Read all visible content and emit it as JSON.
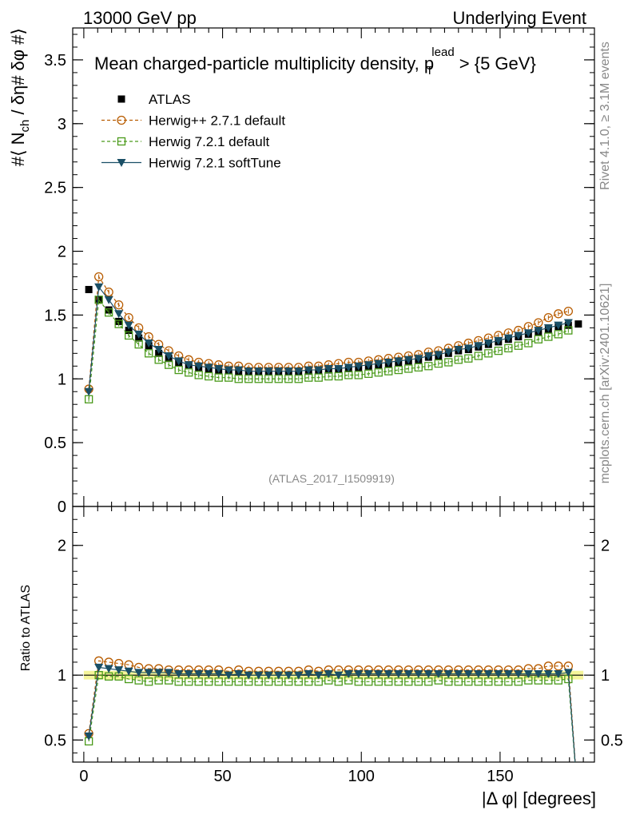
{
  "header": {
    "energy": "13000 GeV pp",
    "process": "Underlying Event"
  },
  "side_labels": {
    "rivet": "Rivet 4.1.0, ≥ 3.1M events",
    "mcplots": "mcplots.cern.ch [arXiv:2401.10621]"
  },
  "watermark": "(ATLAS_2017_I1509919)",
  "chart_data": [
    {
      "type": "line",
      "title": "Mean charged-particle multiplicity density, p_T^lead > {5 GeV}",
      "title_parts": {
        "main": "Mean charged-particle multiplicity density, p",
        "sub": "T",
        "sup": "lead",
        "tail": " > {5 GeV}"
      },
      "ylabel": "#⟨ N_ch / δη# δφ #⟩",
      "ylabel_parts": {
        "a": "#⟨ N",
        "sub": "ch",
        "b": " / δη# δφ #⟩"
      },
      "xlabel": "",
      "xlim": [
        -4,
        184
      ],
      "ylim": [
        0,
        3.75
      ],
      "y_ticks": [
        0,
        0.5,
        1,
        1.5,
        2,
        2.5,
        3,
        3.5
      ],
      "y_tick_labels": [
        "0",
        "0.5",
        "1",
        "1.5",
        "2",
        "2.5",
        "3",
        "3.5"
      ],
      "x": [
        1.8,
        5.4,
        9.0,
        12.6,
        16.2,
        19.8,
        23.4,
        27.0,
        30.6,
        34.2,
        37.8,
        41.4,
        45.0,
        48.6,
        52.2,
        55.8,
        59.4,
        63.0,
        66.6,
        70.2,
        73.8,
        77.4,
        81.0,
        84.6,
        88.2,
        91.8,
        95.4,
        99.0,
        102.6,
        106.2,
        109.8,
        113.4,
        117.0,
        120.6,
        124.2,
        127.8,
        131.4,
        135.0,
        138.6,
        142.2,
        145.8,
        149.4,
        153.0,
        156.6,
        160.2,
        163.8,
        167.4,
        171.0,
        174.6,
        178.2
      ],
      "legend": [
        "ATLAS",
        "Herwig++ 2.7.1 default",
        "Herwig 7.2.1 default",
        "Herwig 7.2.1 softTune"
      ],
      "series": [
        {
          "name": "ATLAS",
          "color": "#000000",
          "marker": "square-filled",
          "x": [
            1.8,
            5.4,
            9.0,
            12.6,
            16.2,
            19.8,
            23.4,
            27.0,
            30.6,
            34.2,
            37.8,
            41.4,
            45.0,
            48.6,
            52.2,
            55.8,
            59.4,
            63.0,
            66.6,
            70.2,
            73.8,
            77.4,
            81.0,
            84.6,
            88.2,
            91.8,
            95.4,
            99.0,
            102.6,
            106.2,
            109.8,
            113.4,
            117.0,
            120.6,
            124.2,
            127.8,
            131.4,
            135.0,
            138.6,
            142.2,
            145.8,
            149.4,
            153.0,
            156.6,
            160.2,
            163.8,
            167.4,
            171.0,
            174.6,
            178.2
          ],
          "values": [
            1.7,
            1.62,
            1.54,
            1.45,
            1.38,
            1.32,
            1.26,
            1.2,
            1.16,
            1.13,
            1.11,
            1.09,
            1.08,
            1.07,
            1.07,
            1.06,
            1.06,
            1.06,
            1.06,
            1.06,
            1.06,
            1.06,
            1.06,
            1.07,
            1.07,
            1.08,
            1.08,
            1.09,
            1.1,
            1.11,
            1.12,
            1.13,
            1.14,
            1.15,
            1.17,
            1.18,
            1.2,
            1.22,
            1.23,
            1.25,
            1.27,
            1.29,
            1.31,
            1.33,
            1.35,
            1.37,
            1.39,
            1.41,
            1.42,
            1.43
          ]
        },
        {
          "name": "Herwig++ 2.7.1 default",
          "color": "#b85c00",
          "marker": "circle-open",
          "line": "dashed",
          "x": [
            1.8,
            5.4,
            9.0,
            12.6,
            16.2,
            19.8,
            23.4,
            27.0,
            30.6,
            34.2,
            37.8,
            41.4,
            45.0,
            48.6,
            52.2,
            55.8,
            59.4,
            63.0,
            66.6,
            70.2,
            73.8,
            77.4,
            81.0,
            84.6,
            88.2,
            91.8,
            95.4,
            99.0,
            102.6,
            106.2,
            109.8,
            113.4,
            117.0,
            120.6,
            124.2,
            127.8,
            131.4,
            135.0,
            138.6,
            142.2,
            145.8,
            149.4,
            153.0,
            156.6,
            160.2,
            163.8,
            167.4,
            171.0,
            174.6
          ],
          "values": [
            0.92,
            1.8,
            1.68,
            1.58,
            1.48,
            1.4,
            1.33,
            1.27,
            1.22,
            1.18,
            1.15,
            1.13,
            1.12,
            1.11,
            1.1,
            1.1,
            1.09,
            1.09,
            1.09,
            1.09,
            1.09,
            1.09,
            1.1,
            1.1,
            1.11,
            1.12,
            1.13,
            1.13,
            1.14,
            1.15,
            1.16,
            1.17,
            1.18,
            1.19,
            1.21,
            1.22,
            1.24,
            1.26,
            1.28,
            1.3,
            1.32,
            1.34,
            1.36,
            1.38,
            1.41,
            1.44,
            1.48,
            1.51,
            1.53
          ]
        },
        {
          "name": "Herwig 7.2.1 default",
          "color": "#4a9a1a",
          "marker": "square-open",
          "line": "dashed",
          "x": [
            1.8,
            5.4,
            9.0,
            12.6,
            16.2,
            19.8,
            23.4,
            27.0,
            30.6,
            34.2,
            37.8,
            41.4,
            45.0,
            48.6,
            52.2,
            55.8,
            59.4,
            63.0,
            66.6,
            70.2,
            73.8,
            77.4,
            81.0,
            84.6,
            88.2,
            91.8,
            95.4,
            99.0,
            102.6,
            106.2,
            109.8,
            113.4,
            117.0,
            120.6,
            124.2,
            127.8,
            131.4,
            135.0,
            138.6,
            142.2,
            145.8,
            149.4,
            153.0,
            156.6,
            160.2,
            163.8,
            167.4,
            171.0,
            174.6
          ],
          "values": [
            0.84,
            1.62,
            1.52,
            1.43,
            1.34,
            1.27,
            1.2,
            1.15,
            1.11,
            1.07,
            1.05,
            1.03,
            1.02,
            1.01,
            1.01,
            1.0,
            1.0,
            1.0,
            1.0,
            1.0,
            1.0,
            1.0,
            1.01,
            1.01,
            1.02,
            1.02,
            1.03,
            1.03,
            1.04,
            1.05,
            1.06,
            1.07,
            1.08,
            1.09,
            1.1,
            1.12,
            1.13,
            1.15,
            1.16,
            1.18,
            1.2,
            1.22,
            1.24,
            1.26,
            1.28,
            1.31,
            1.33,
            1.35,
            1.38
          ]
        },
        {
          "name": "Herwig 7.2.1 softTune",
          "color": "#1a4f66",
          "marker": "triangle-down-filled",
          "line": "solid",
          "x": [
            1.8,
            5.4,
            9.0,
            12.6,
            16.2,
            19.8,
            23.4,
            27.0,
            30.6,
            34.2,
            37.8,
            41.4,
            45.0,
            48.6,
            52.2,
            55.8,
            59.4,
            63.0,
            66.6,
            70.2,
            73.8,
            77.4,
            81.0,
            84.6,
            88.2,
            91.8,
            95.4,
            99.0,
            102.6,
            106.2,
            109.8,
            113.4,
            117.0,
            120.6,
            124.2,
            127.8,
            131.4,
            135.0,
            138.6,
            142.2,
            145.8,
            149.4,
            153.0,
            156.6,
            160.2,
            163.8,
            167.4,
            171.0,
            174.6
          ],
          "values": [
            0.9,
            1.72,
            1.62,
            1.51,
            1.42,
            1.35,
            1.28,
            1.23,
            1.18,
            1.14,
            1.11,
            1.1,
            1.09,
            1.08,
            1.07,
            1.07,
            1.06,
            1.06,
            1.06,
            1.06,
            1.06,
            1.06,
            1.07,
            1.07,
            1.08,
            1.08,
            1.09,
            1.1,
            1.11,
            1.12,
            1.13,
            1.14,
            1.15,
            1.16,
            1.18,
            1.19,
            1.21,
            1.23,
            1.24,
            1.26,
            1.28,
            1.3,
            1.32,
            1.34,
            1.36,
            1.38,
            1.4,
            1.42,
            1.44
          ]
        }
      ]
    },
    {
      "type": "line",
      "title": "",
      "ylabel": "Ratio to ATLAS",
      "xlabel": "|Δ φ| [degrees]",
      "xlim": [
        -4,
        184
      ],
      "ylim": [
        0.33,
        2.3
      ],
      "x_ticks": [
        0,
        50,
        100,
        150
      ],
      "x_tick_labels": [
        "0",
        "50",
        "100",
        "150"
      ],
      "y_ticks": [
        0.5,
        1,
        2
      ],
      "y_tick_labels": [
        "0.5",
        "1",
        "2"
      ],
      "reference_band": {
        "center": 1.0,
        "low": 0.985,
        "high": 1.015,
        "color": "#f5f59a"
      },
      "series": [
        {
          "name": "Herwig++ 2.7.1 default",
          "color": "#b85c00",
          "marker": "circle-open",
          "line": "dashed",
          "x": [
            1.8,
            5.4,
            9.0,
            12.6,
            16.2,
            19.8,
            23.4,
            27.0,
            30.6,
            34.2,
            37.8,
            41.4,
            45.0,
            48.6,
            52.2,
            55.8,
            59.4,
            63.0,
            66.6,
            70.2,
            73.8,
            77.4,
            81.0,
            84.6,
            88.2,
            91.8,
            95.4,
            99.0,
            102.6,
            106.2,
            109.8,
            113.4,
            117.0,
            120.6,
            124.2,
            127.8,
            131.4,
            135.0,
            138.6,
            142.2,
            145.8,
            149.4,
            153.0,
            156.6,
            160.2,
            163.8,
            167.4,
            171.0,
            174.6,
            178.2
          ],
          "values": [
            0.55,
            1.11,
            1.1,
            1.09,
            1.08,
            1.06,
            1.05,
            1.05,
            1.04,
            1.04,
            1.04,
            1.04,
            1.04,
            1.04,
            1.03,
            1.04,
            1.03,
            1.03,
            1.03,
            1.03,
            1.03,
            1.03,
            1.04,
            1.03,
            1.04,
            1.04,
            1.04,
            1.04,
            1.04,
            1.04,
            1.04,
            1.04,
            1.04,
            1.04,
            1.04,
            1.04,
            1.04,
            1.04,
            1.04,
            1.04,
            1.04,
            1.04,
            1.04,
            1.04,
            1.05,
            1.05,
            1.07,
            1.07,
            1.07,
            0.0
          ]
        },
        {
          "name": "Herwig 7.2.1 default",
          "color": "#4a9a1a",
          "marker": "square-open",
          "line": "dashed",
          "x": [
            1.8,
            5.4,
            9.0,
            12.6,
            16.2,
            19.8,
            23.4,
            27.0,
            30.6,
            34.2,
            37.8,
            41.4,
            45.0,
            48.6,
            52.2,
            55.8,
            59.4,
            63.0,
            66.6,
            70.2,
            73.8,
            77.4,
            81.0,
            84.6,
            88.2,
            91.8,
            95.4,
            99.0,
            102.6,
            106.2,
            109.8,
            113.4,
            117.0,
            120.6,
            124.2,
            127.8,
            131.4,
            135.0,
            138.6,
            142.2,
            145.8,
            149.4,
            153.0,
            156.6,
            160.2,
            163.8,
            167.4,
            171.0,
            174.6,
            178.2
          ],
          "values": [
            0.49,
            1.0,
            0.99,
            0.99,
            0.97,
            0.96,
            0.95,
            0.96,
            0.96,
            0.95,
            0.95,
            0.95,
            0.95,
            0.95,
            0.95,
            0.95,
            0.95,
            0.95,
            0.95,
            0.95,
            0.95,
            0.95,
            0.95,
            0.95,
            0.96,
            0.95,
            0.96,
            0.95,
            0.95,
            0.95,
            0.95,
            0.95,
            0.95,
            0.95,
            0.95,
            0.96,
            0.95,
            0.95,
            0.95,
            0.95,
            0.95,
            0.95,
            0.95,
            0.95,
            0.96,
            0.96,
            0.96,
            0.96,
            0.97,
            0.0
          ]
        },
        {
          "name": "Herwig 7.2.1 softTune",
          "color": "#1a4f66",
          "marker": "triangle-down-filled",
          "line": "solid",
          "x": [
            1.8,
            5.4,
            9.0,
            12.6,
            16.2,
            19.8,
            23.4,
            27.0,
            30.6,
            34.2,
            37.8,
            41.4,
            45.0,
            48.6,
            52.2,
            55.8,
            59.4,
            63.0,
            66.6,
            70.2,
            73.8,
            77.4,
            81.0,
            84.6,
            88.2,
            91.8,
            95.4,
            99.0,
            102.6,
            106.2,
            109.8,
            113.4,
            117.0,
            120.6,
            124.2,
            127.8,
            131.4,
            135.0,
            138.6,
            142.2,
            145.8,
            149.4,
            153.0,
            156.6,
            160.2,
            163.8,
            167.4,
            171.0,
            174.6,
            178.2
          ],
          "values": [
            0.53,
            1.06,
            1.05,
            1.04,
            1.03,
            1.02,
            1.02,
            1.02,
            1.02,
            1.01,
            1.01,
            1.01,
            1.01,
            1.01,
            1.0,
            1.01,
            1.0,
            1.0,
            1.0,
            1.0,
            1.0,
            1.0,
            1.01,
            1.0,
            1.01,
            1.0,
            1.01,
            1.01,
            1.01,
            1.01,
            1.01,
            1.01,
            1.01,
            1.01,
            1.01,
            1.01,
            1.01,
            1.01,
            1.01,
            1.01,
            1.01,
            1.01,
            1.01,
            1.01,
            1.01,
            1.01,
            1.01,
            1.01,
            1.02,
            0.0
          ]
        }
      ]
    }
  ]
}
